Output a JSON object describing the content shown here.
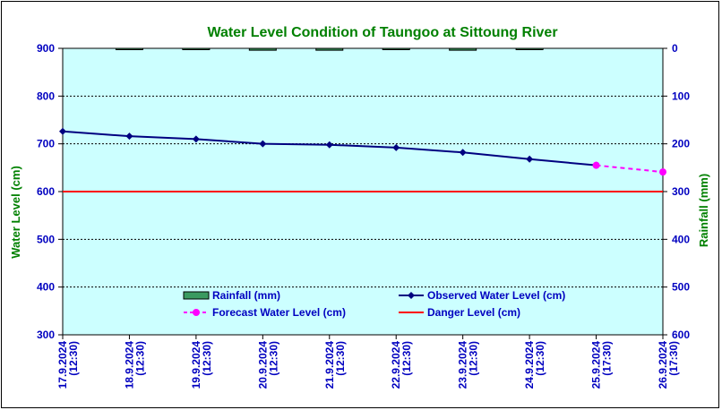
{
  "chart_data": {
    "type": "line",
    "title": "Water Level Condition of Taungoo at  Sittoung River",
    "ylabel": "Water Level (cm)",
    "y2label": "Rainfall (mm)",
    "ylim": [
      300,
      900
    ],
    "y2lim": [
      600,
      0
    ],
    "yticks": [
      "300",
      "400",
      "500",
      "600",
      "700",
      "800",
      "900"
    ],
    "y2ticks": [
      "0",
      "100",
      "200",
      "300",
      "400",
      "500",
      "600"
    ],
    "categories": [
      [
        "17.9.2024",
        "(12:30)"
      ],
      [
        "18.9.2024",
        "(12:30)"
      ],
      [
        "19.9.2024",
        "(12:30)"
      ],
      [
        "20.9.2024",
        "(12:30)"
      ],
      [
        "21.9.2024",
        "(12:30)"
      ],
      [
        "22.9.2024",
        "(12:30)"
      ],
      [
        "23.9.2024",
        "(12:30)"
      ],
      [
        "24.9.2024",
        "(12:30)"
      ],
      [
        "25.9.2024",
        "(17:30)"
      ],
      [
        "26.9.2024",
        "(17:30)"
      ]
    ],
    "series": [
      {
        "name": "Rainfall (mm)",
        "kind": "bar",
        "axis": "right",
        "color": "#3a9a60",
        "values": [
          null,
          1,
          1,
          4,
          4,
          1,
          4,
          1,
          null,
          null
        ]
      },
      {
        "name": "Observed Water Level (cm)",
        "kind": "line",
        "axis": "left",
        "color": "#000080",
        "values": [
          726,
          716,
          710,
          700,
          698,
          692,
          682,
          668,
          655,
          null
        ]
      },
      {
        "name": "Forecast Water Level (cm)",
        "kind": "line-dashed",
        "axis": "left",
        "color": "#ff00ff",
        "values": [
          null,
          null,
          null,
          null,
          null,
          null,
          null,
          null,
          655,
          641
        ]
      },
      {
        "name": "Danger Level (cm)",
        "kind": "hline",
        "axis": "left",
        "color": "#ff0000",
        "value": 600
      }
    ],
    "grid": true,
    "legend_position": "lower-center inside plot",
    "colors": {
      "plot_bg": "#ccffff",
      "axis_text": "#0000c0",
      "title": "#008000"
    }
  }
}
